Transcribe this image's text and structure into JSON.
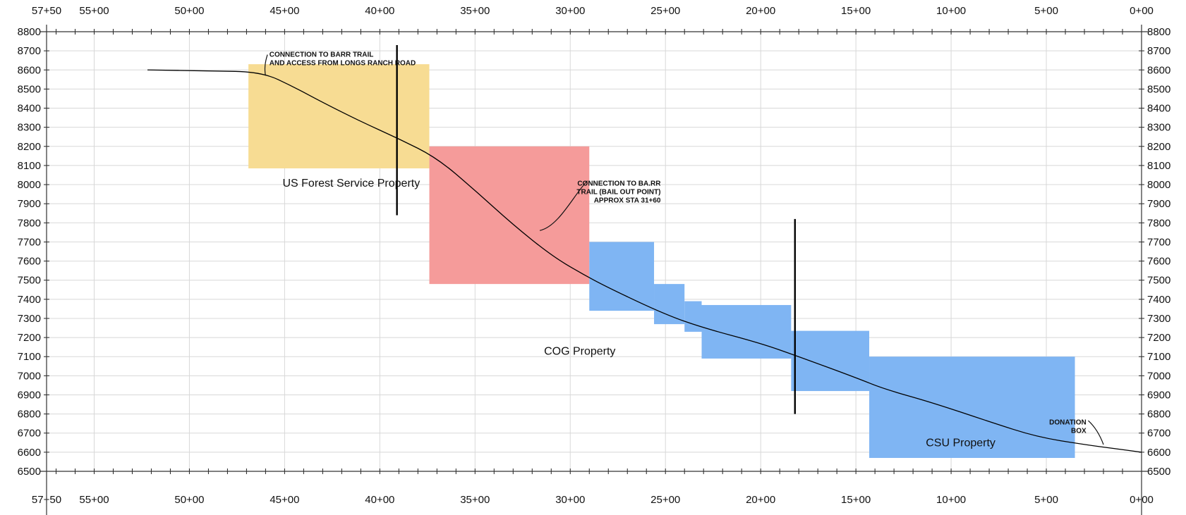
{
  "chart_data": {
    "type": "line",
    "x_axis_reversed": true,
    "xlim": [
      5750,
      0
    ],
    "ylim": [
      6500,
      8800
    ],
    "y_ticks": [
      8800,
      8700,
      8600,
      8500,
      8400,
      8300,
      8200,
      8100,
      8000,
      7900,
      7800,
      7700,
      7600,
      7500,
      7400,
      7300,
      7200,
      7100,
      7000,
      6900,
      6800,
      6700,
      6600,
      6500
    ],
    "x_ticks": [
      {
        "value": 5750,
        "label": "57+50"
      },
      {
        "value": 5500,
        "label": "55+00"
      },
      {
        "value": 5000,
        "label": "50+00"
      },
      {
        "value": 4500,
        "label": "45+00"
      },
      {
        "value": 4000,
        "label": "40+00"
      },
      {
        "value": 3500,
        "label": "35+00"
      },
      {
        "value": 3000,
        "label": "30+00"
      },
      {
        "value": 2500,
        "label": "25+00"
      },
      {
        "value": 2000,
        "label": "20+00"
      },
      {
        "value": 1500,
        "label": "15+00"
      },
      {
        "value": 1000,
        "label": "10+00"
      },
      {
        "value": 500,
        "label": "5+00"
      },
      {
        "value": 0,
        "label": "0+00"
      }
    ],
    "grid": true,
    "series": [
      {
        "color": "#000000",
        "x": [
          5220,
          4900,
          4620,
          4450,
          4300,
          4100,
          3900,
          3700,
          3500,
          3300,
          3100,
          2950,
          2800,
          2500,
          2300,
          2000,
          1800,
          1500,
          1350,
          1100,
          800,
          550,
          300,
          150,
          0
        ],
        "y": [
          8600,
          8595,
          8590,
          8510,
          8430,
          8330,
          8240,
          8140,
          7970,
          7790,
          7630,
          7540,
          7460,
          7320,
          7250,
          7170,
          7100,
          6990,
          6930,
          6860,
          6760,
          6680,
          6640,
          6620,
          6600
        ]
      }
    ],
    "property_regions": [
      {
        "name": "US Forest Service Property",
        "color": "#f7dc93",
        "x_range": [
          4690,
          3740
        ],
        "y_range": [
          8085,
          8630
        ]
      },
      {
        "name": "COG Property",
        "color": "#f59b9a",
        "x_range": [
          3740,
          2900
        ],
        "y_range": [
          7480,
          8200
        ]
      },
      {
        "name": "COG Property",
        "color": "#7fb5f3",
        "x_range": [
          2900,
          2560
        ],
        "y_range": [
          7340,
          7700
        ]
      },
      {
        "name": "COG Property",
        "color": "#7fb5f3",
        "x_range": [
          2560,
          2400
        ],
        "y_range": [
          7270,
          7480
        ]
      },
      {
        "name": "COG Property",
        "color": "#7fb5f3",
        "x_range": [
          2400,
          2310
        ],
        "y_range": [
          7230,
          7390
        ]
      },
      {
        "name": "COG Property",
        "color": "#7fb5f3",
        "x_range": [
          2310,
          1840
        ],
        "y_range": [
          7090,
          7370
        ]
      },
      {
        "name": "COG Property",
        "color": "#7fb5f3",
        "x_range": [
          1840,
          1430
        ],
        "y_range": [
          6920,
          7235
        ]
      },
      {
        "name": "CSU Property",
        "color": "#7fb5f3",
        "x_range": [
          1430,
          350
        ],
        "y_range": [
          6570,
          7100
        ]
      }
    ],
    "property_labels": [
      {
        "text": "US Forest Service Property",
        "x": 4150,
        "y": 7990
      },
      {
        "text": "COG Property",
        "x": 2950,
        "y": 7110
      },
      {
        "text": "CSU Property",
        "x": 950,
        "y": 6630
      }
    ],
    "boundary_lines": [
      {
        "x": 3910,
        "y_range": [
          7840,
          8730
        ]
      },
      {
        "x": 1820,
        "y_range": [
          6800,
          7820
        ]
      }
    ],
    "annotations": [
      {
        "lines": [
          "CONNECTION TO BARR TRAIL",
          "AND ACCESS FROM LONGS RANCH ROAD"
        ],
        "x": 4580,
        "y": 8670,
        "anchor": "start",
        "leader": [
          [
            4590,
            8680
          ],
          [
            4610,
            8620
          ],
          [
            4600,
            8570
          ]
        ]
      },
      {
        "lines": [
          "CONNECTION TO BA.RR",
          "TRAIL (BAIL OUT POINT)",
          "APPROX STA 31+60"
        ],
        "x": 2525,
        "y": 7995,
        "anchor": "end",
        "leader": [
          [
            2910,
            8020
          ],
          [
            2980,
            7950
          ],
          [
            3060,
            7780
          ],
          [
            3160,
            7760
          ]
        ]
      },
      {
        "lines": [
          "DONATION",
          "BOX"
        ],
        "x": 290,
        "y": 6745,
        "anchor": "end",
        "leader": [
          [
            280,
            6765
          ],
          [
            230,
            6720
          ],
          [
            200,
            6640
          ]
        ]
      }
    ]
  }
}
